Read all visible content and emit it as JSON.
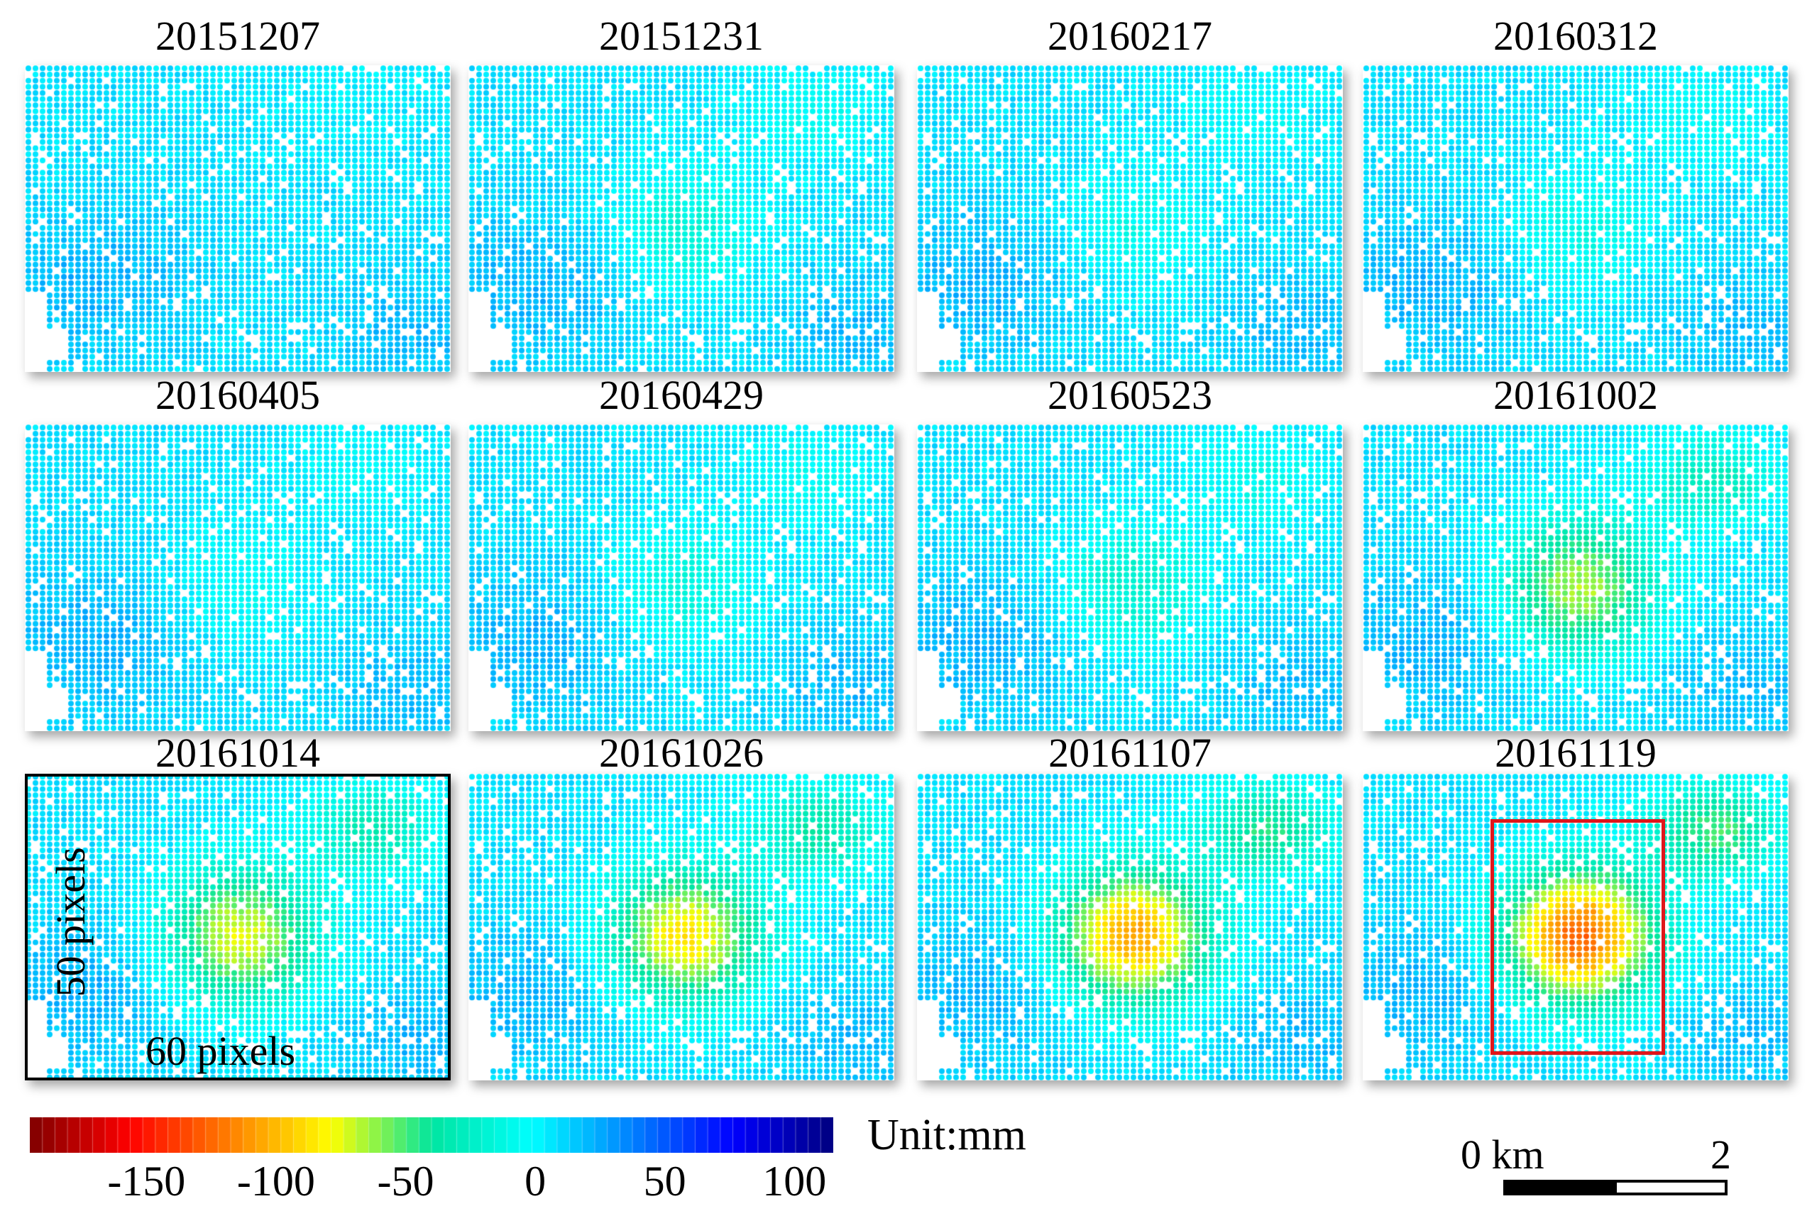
{
  "panels": [
    {
      "date": "20151207",
      "def": 0
    },
    {
      "date": "20151231",
      "def": 0.18
    },
    {
      "date": "20160217",
      "def": 0.12
    },
    {
      "date": "20160312",
      "def": 0.14
    },
    {
      "date": "20160405",
      "def": 0.1
    },
    {
      "date": "20160429",
      "def": 0.16
    },
    {
      "date": "20160523",
      "def": 0.22
    },
    {
      "date": "20161002",
      "def": 0.55
    },
    {
      "date": "20161014",
      "def": 0.62
    },
    {
      "date": "20161026",
      "def": 0.7
    },
    {
      "date": "20161107",
      "def": 0.85
    },
    {
      "date": "20161119",
      "def": 1.0
    }
  ],
  "annotations": {
    "rows_label": "50 pixels",
    "cols_label": "60 pixels"
  },
  "colorbar": {
    "min": -195,
    "max": 115,
    "ticks": [
      "-150",
      "-100",
      "-50",
      "0",
      "50",
      "100"
    ],
    "tick_values": [
      -150,
      -100,
      -50,
      0,
      50,
      100
    ],
    "unit": "Unit:mm",
    "colors": [
      "#7f0000",
      "#ff0000",
      "#ff8000",
      "#ffff00",
      "#00e5a0",
      "#00ffff",
      "#0080ff",
      "#0000ff",
      "#00007f"
    ]
  },
  "scalebar": {
    "start_label": "0 km",
    "end_label": "2"
  },
  "highlight": {
    "panel": "20161119",
    "color": "#e0161b"
  }
}
